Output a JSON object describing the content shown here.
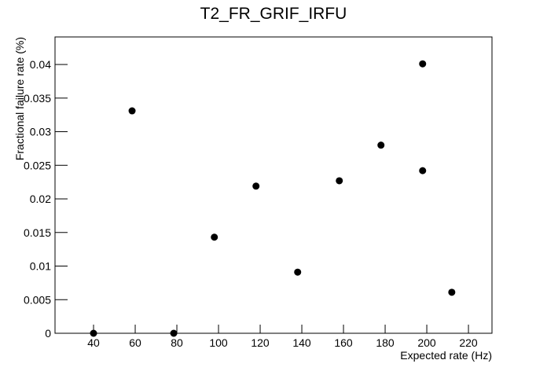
{
  "chart_data": {
    "type": "scatter",
    "title": "T2_FR_GRIF_IRFU",
    "x_label": "Expected rate (Hz)",
    "y_label": "Fractional failure rate (%)",
    "series": [
      {
        "color": "#000000",
        "x": [
          40,
          58.5,
          78.5,
          98,
          118,
          138,
          158,
          178,
          198,
          198,
          212
        ],
        "values": [
          0,
          0.0331,
          0,
          0.0143,
          0.0219,
          0.0091,
          0.0227,
          0.028,
          0.0242,
          0.0401,
          0.0061
        ]
      }
    ],
    "xlim": [
      21.5,
      231.3
    ],
    "ylim": [
      0,
      0.0441
    ],
    "xticks": [
      40,
      60,
      80,
      100,
      120,
      140,
      160,
      180,
      200,
      220
    ],
    "yticks": [
      0,
      0.005,
      0.01,
      0.015,
      0.02,
      0.025,
      0.03,
      0.035,
      0.04
    ],
    "grid": false
  }
}
